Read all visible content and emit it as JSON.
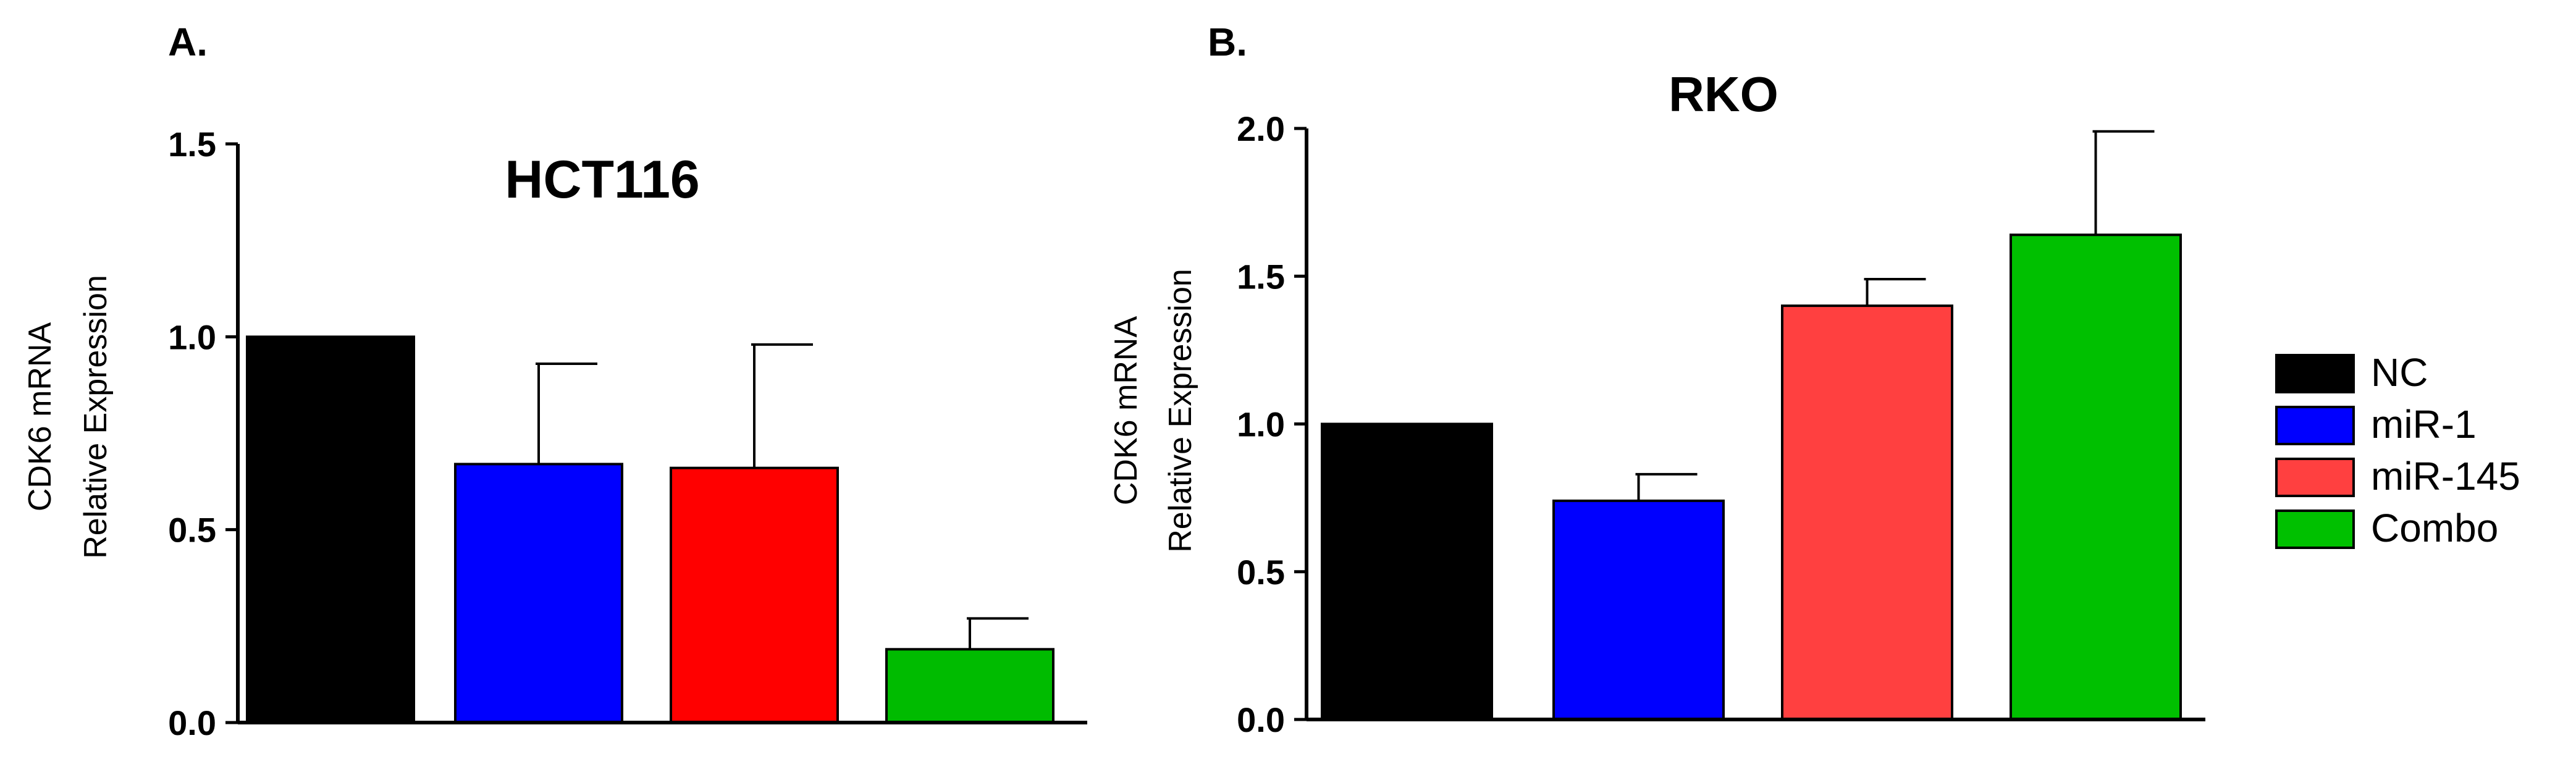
{
  "chart_data": [
    {
      "type": "bar",
      "panel_label": "A.",
      "title": "HCT116",
      "ylabel_line1": "CDK6 mRNA",
      "ylabel_line2": "Relative Expression",
      "categories": [
        "NC",
        "miR-1",
        "miR-145",
        "Combo"
      ],
      "values": [
        1.0,
        0.67,
        0.66,
        0.19
      ],
      "errors": [
        0.0,
        0.26,
        0.32,
        0.08
      ],
      "ylim": [
        0,
        1.5
      ],
      "yticks": [
        "0.0",
        "0.5",
        "1.0",
        "1.5"
      ],
      "colors": [
        "#000000",
        "#0000ff",
        "#ff0000",
        "#00bb00"
      ]
    },
    {
      "type": "bar",
      "panel_label": "B.",
      "title": "RKO",
      "ylabel_line1": "CDK6 mRNA",
      "ylabel_line2": "Relative Expression",
      "categories": [
        "NC",
        "miR-1",
        "miR-145",
        "Combo"
      ],
      "values": [
        1.0,
        0.74,
        1.4,
        1.64
      ],
      "errors": [
        0.0,
        0.09,
        0.09,
        0.35
      ],
      "ylim": [
        0,
        2.0
      ],
      "yticks": [
        "0.0",
        "0.5",
        "1.0",
        "1.5",
        "2.0"
      ],
      "colors": [
        "#000000",
        "#0000ff",
        "#ff4040",
        "#00c000"
      ]
    }
  ],
  "legend": {
    "position": "right",
    "items": [
      {
        "label": "NC",
        "color": "#000000"
      },
      {
        "label": "miR-1",
        "color": "#0000ff"
      },
      {
        "label": "miR-145",
        "color": "#ff4040"
      },
      {
        "label": "Combo",
        "color": "#00c000"
      }
    ]
  }
}
